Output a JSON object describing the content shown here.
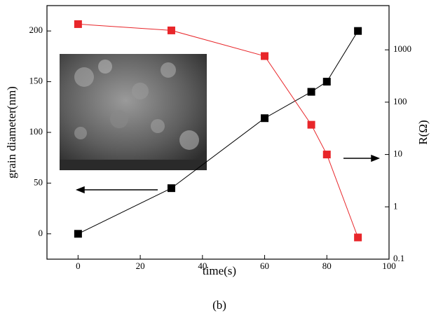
{
  "chart_data": {
    "type": "line",
    "x_label": "time(s)",
    "y_label": "grain diameter(nm)",
    "y2_label": "R(Ω)",
    "caption": "(b)",
    "x": [
      0,
      30,
      60,
      75,
      80,
      90
    ],
    "series": [
      {
        "color": "#000000",
        "values": [
          0,
          45,
          114,
          140,
          150,
          200
        ]
      },
      {
        "color": "#e8262a",
        "axis": "y2",
        "values": [
          3100,
          2350,
          760,
          37,
          10,
          0.26
        ]
      }
    ],
    "xlim": [
      -10,
      100
    ],
    "xticks": [
      0,
      20,
      40,
      60,
      80,
      100
    ],
    "ylim": [
      -25,
      225
    ],
    "yticks": [
      0,
      50,
      100,
      150,
      200
    ],
    "y2lim": [
      0.1,
      7000
    ],
    "y2ticks": [
      0.1,
      1,
      10,
      100,
      1000
    ],
    "y2log": true
  }
}
